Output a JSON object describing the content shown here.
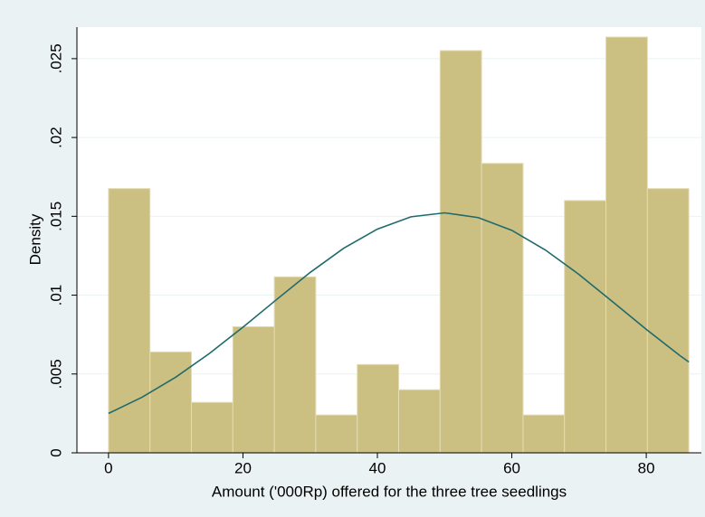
{
  "chart_data": {
    "type": "histogram",
    "xlabel": "Amount ('000Rp) offered for the three tree seedlings",
    "ylabel": "Density",
    "bins": [
      0,
      6.17,
      12.33,
      18.5,
      24.67,
      30.83,
      37,
      43.17,
      49.33,
      55.5,
      61.67,
      67.83,
      74,
      80.17,
      86.33
    ],
    "values": [
      0.01676,
      0.0064,
      0.0032,
      0.008,
      0.01116,
      0.0024,
      0.0056,
      0.004,
      0.02551,
      0.01836,
      0.0024,
      0.016,
      0.02637,
      0.01676
    ],
    "color": "#ccbf82",
    "line": {
      "color": "#1f6b6b",
      "x": [
        0,
        5,
        10,
        15,
        20,
        25,
        30,
        35,
        40,
        45,
        50,
        55,
        60,
        65,
        70,
        75,
        80,
        85,
        86.33
      ],
      "values": [
        0.0025,
        0.00353,
        0.0048,
        0.0063,
        0.00797,
        0.00972,
        0.01144,
        0.01298,
        0.01419,
        0.01497,
        0.01522,
        0.01492,
        0.01411,
        0.01286,
        0.01131,
        0.00958,
        0.00783,
        0.00617,
        0.00576
      ]
    },
    "xlim": [
      -4.7,
      88.2
    ],
    "ylim": [
      0,
      0.027
    ],
    "xticks": [
      0,
      20,
      40,
      60,
      80
    ],
    "yticks": [
      0,
      {
        "value": 0.005,
        "label": ".005"
      },
      {
        "value": 0.01,
        "label": ".01"
      },
      {
        "value": 0.015,
        "label": ".015"
      },
      {
        "value": 0.02,
        "label": ".02"
      },
      {
        "value": 0.025,
        "label": ".025"
      }
    ],
    "grid": true
  }
}
